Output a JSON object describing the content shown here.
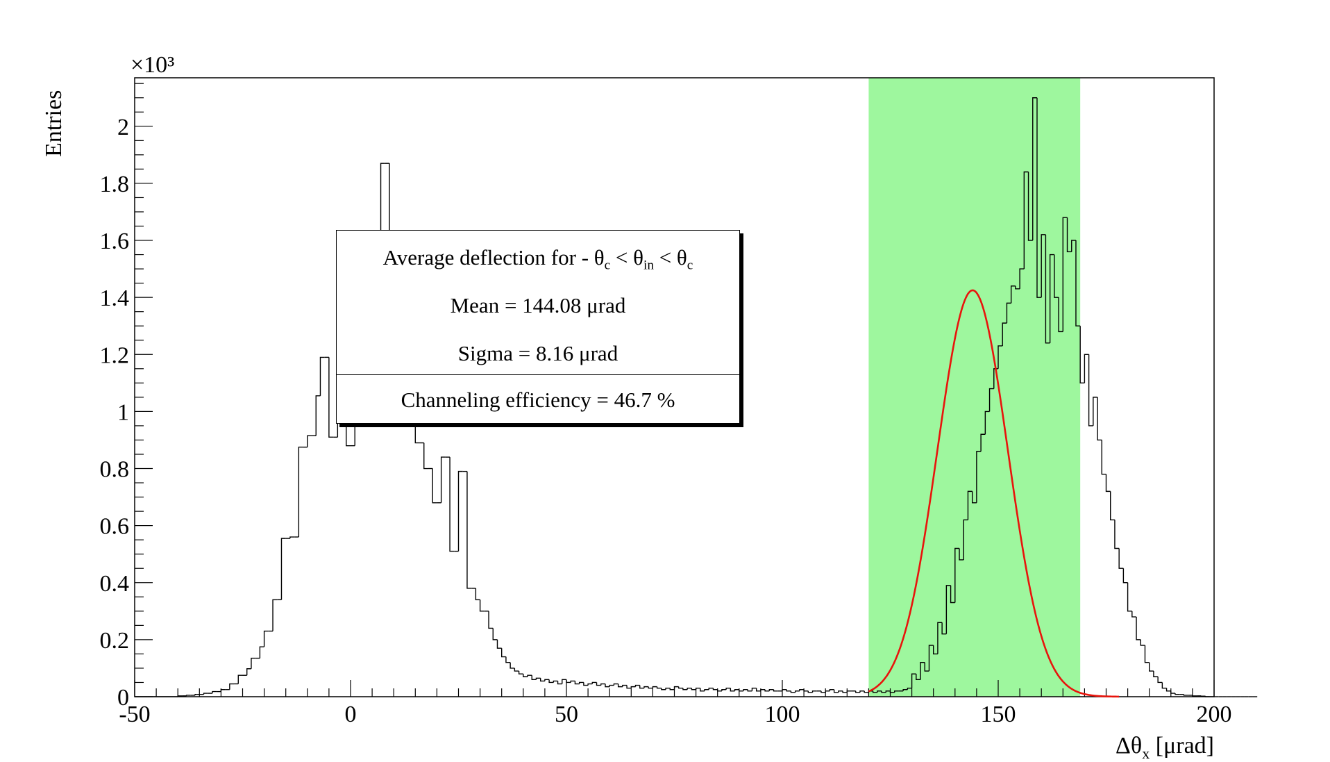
{
  "chart_data": {
    "type": "histogram",
    "ylabel": "Entries",
    "y_multiplier": "×10³",
    "xlim": [
      -50,
      200
    ],
    "ylim": [
      0,
      2.17
    ],
    "y_units": "×10³ entries",
    "x_ticks": [
      "-50",
      "0",
      "50",
      "100",
      "150",
      "200"
    ],
    "x_tick_values": [
      -50,
      0,
      50,
      100,
      150,
      200
    ],
    "y_ticks": [
      "0",
      "0.2",
      "0.4",
      "0.6",
      "0.8",
      "1",
      "1.2",
      "1.4",
      "1.6",
      "1.8",
      "2"
    ],
    "y_tick_values": [
      0,
      0.2,
      0.4,
      0.6,
      0.8,
      1.0,
      1.2,
      1.4,
      1.6,
      1.8,
      2.0
    ],
    "xlabel_parts": {
      "pre": "Δθ",
      "sub": "x",
      "post": " [μrad]"
    },
    "bin_width": 1.0,
    "histogram": {
      "x_start": -50,
      "counts": [
        0.0,
        0.0,
        0.0,
        0.0,
        0.0,
        0.0,
        0.0,
        0.0,
        0.0,
        0.0,
        0.003,
        0.003,
        0.005,
        0.005,
        0.008,
        0.008,
        0.012,
        0.012,
        0.018,
        0.018,
        0.025,
        0.025,
        0.045,
        0.045,
        0.075,
        0.075,
        0.098,
        0.135,
        0.135,
        0.175,
        0.23,
        0.23,
        0.34,
        0.34,
        0.555,
        0.555,
        0.56,
        0.56,
        0.875,
        0.875,
        0.915,
        0.915,
        1.055,
        1.19,
        1.19,
        0.91,
        0.91,
        1.56,
        1.56,
        0.88,
        0.88,
        1.5,
        1.5,
        1.12,
        1.12,
        1.02,
        1.02,
        1.87,
        1.87,
        1.02,
        0.98,
        0.98,
        1.06,
        1.06,
        0.95,
        0.89,
        0.89,
        0.8,
        0.8,
        0.68,
        0.68,
        0.84,
        0.84,
        0.51,
        0.51,
        0.79,
        0.79,
        0.38,
        0.38,
        0.34,
        0.3,
        0.3,
        0.24,
        0.2,
        0.17,
        0.14,
        0.12,
        0.1,
        0.09,
        0.08,
        0.07,
        0.075,
        0.06,
        0.065,
        0.055,
        0.06,
        0.05,
        0.055,
        0.045,
        0.06,
        0.05,
        0.055,
        0.045,
        0.05,
        0.04,
        0.045,
        0.05,
        0.04,
        0.045,
        0.035,
        0.04,
        0.045,
        0.035,
        0.04,
        0.03,
        0.035,
        0.04,
        0.03,
        0.035,
        0.03,
        0.035,
        0.03,
        0.025,
        0.03,
        0.025,
        0.035,
        0.03,
        0.025,
        0.03,
        0.025,
        0.03,
        0.02,
        0.025,
        0.03,
        0.025,
        0.02,
        0.025,
        0.03,
        0.02,
        0.025,
        0.02,
        0.025,
        0.02,
        0.03,
        0.02,
        0.025,
        0.02,
        0.025,
        0.02,
        0.02,
        0.025,
        0.02,
        0.015,
        0.02,
        0.025,
        0.02,
        0.015,
        0.02,
        0.02,
        0.015,
        0.02,
        0.025,
        0.015,
        0.02,
        0.015,
        0.02,
        0.02,
        0.015,
        0.02,
        0.015,
        0.02,
        0.015,
        0.02,
        0.015,
        0.02,
        0.015,
        0.02,
        0.02,
        0.025,
        0.03,
        0.08,
        0.06,
        0.12,
        0.09,
        0.18,
        0.15,
        0.26,
        0.22,
        0.39,
        0.33,
        0.52,
        0.48,
        0.62,
        0.72,
        0.68,
        0.86,
        0.92,
        1.0,
        1.08,
        1.15,
        1.23,
        1.31,
        1.38,
        1.44,
        1.43,
        1.5,
        1.84,
        1.6,
        2.1,
        1.4,
        1.62,
        1.24,
        1.55,
        1.4,
        1.28,
        1.68,
        1.56,
        1.6,
        1.3,
        1.1,
        1.2,
        0.95,
        1.05,
        0.9,
        0.78,
        0.72,
        0.62,
        0.52,
        0.45,
        0.4,
        0.3,
        0.28,
        0.2,
        0.18,
        0.12,
        0.09,
        0.07,
        0.05,
        0.03,
        0.02,
        0.012,
        0.008,
        0.008,
        0.005,
        0.005,
        0.003,
        0.003,
        0.002,
        0.0,
        0.0,
        0.0,
        0.0,
        0.0,
        0.0,
        0.0,
        0.0,
        0.0,
        0.0,
        0.0,
        0.0
      ],
      "stroke": "#000000"
    },
    "fit": {
      "type": "gaussian",
      "mean": 144.08,
      "sigma": 8.16,
      "amplitude": 1.425,
      "x_range": [
        120,
        178
      ],
      "color": "#e8140c"
    },
    "highlight_band": {
      "x_range": [
        120,
        169
      ],
      "color": "#9ef79e"
    },
    "legend": {
      "title_parts": [
        "Average deflection for - θ",
        "c",
        " < θ",
        "in",
        " < θ",
        "c"
      ],
      "mean_label": "Mean = 144.08 μrad",
      "sigma_label": "Sigma = 8.16 μrad",
      "efficiency_label": "Channeling efficiency = 46.7 %",
      "placement": "center-left"
    }
  }
}
